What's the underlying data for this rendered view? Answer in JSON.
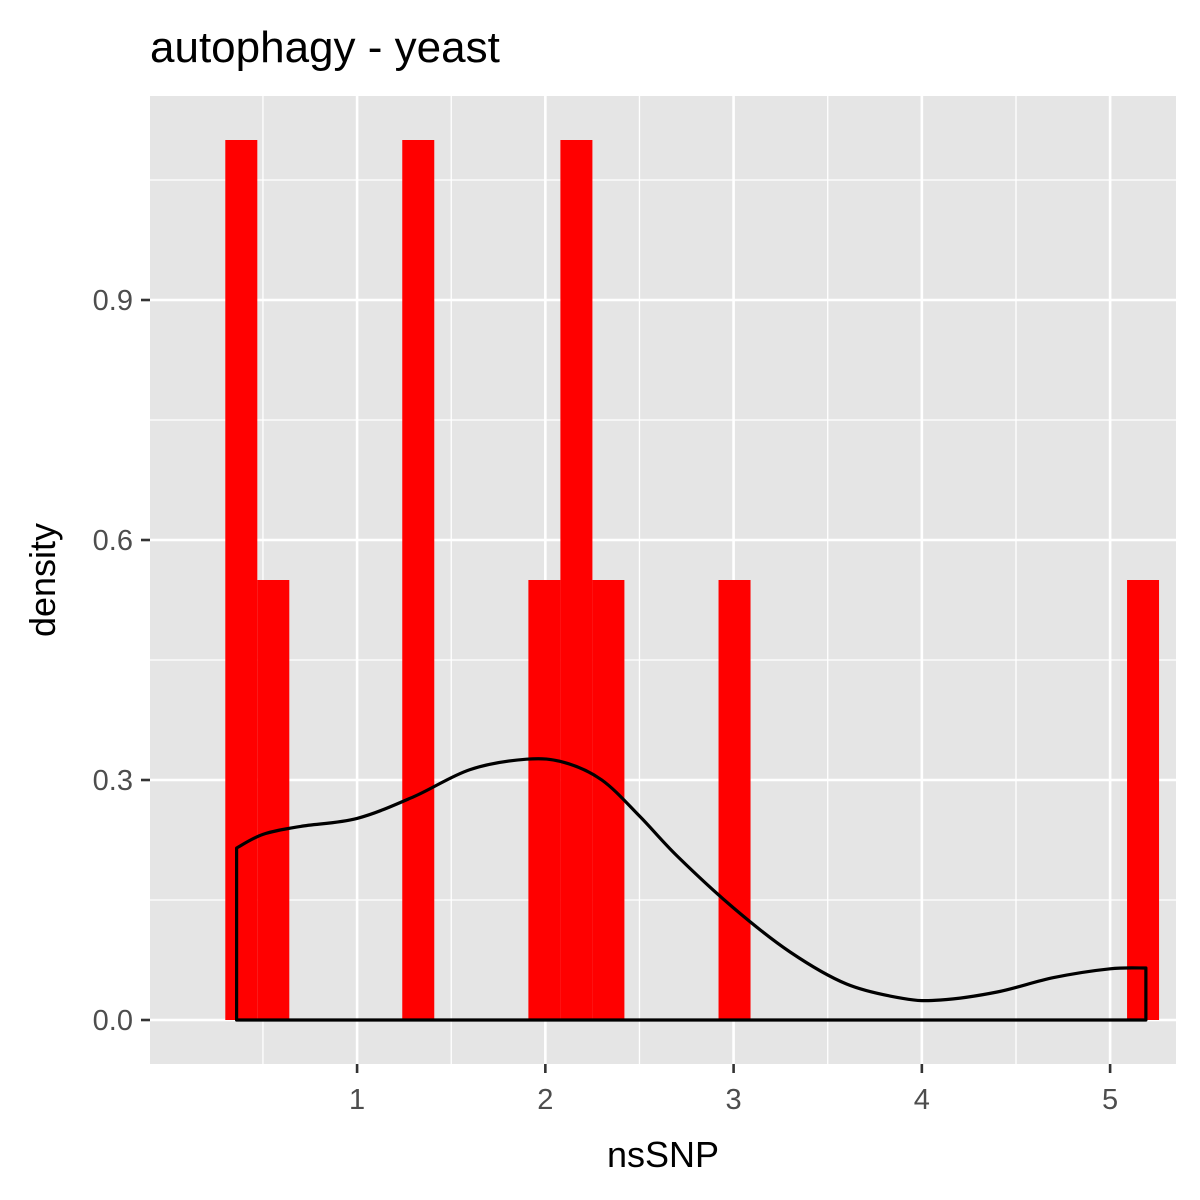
{
  "chart_data": {
    "type": "bar",
    "title": "autophagy - yeast",
    "xlabel": "nsSNP",
    "ylabel": "density",
    "xlim": [
      -0.1,
      5.35
    ],
    "ylim": [
      -0.055,
      1.155
    ],
    "x_ticks": [
      1,
      2,
      3,
      4,
      5
    ],
    "y_ticks": [
      0.0,
      0.3,
      0.6,
      0.9
    ],
    "x_tick_labels": [
      "1",
      "2",
      "3",
      "4",
      "5"
    ],
    "y_tick_labels": [
      "0.0",
      "0.3",
      "0.6",
      "0.9"
    ],
    "grid": true,
    "bar_color": "#ff0000",
    "line_color": "#000000",
    "panel_background": "#e5e5e5",
    "bars": [
      {
        "x0": 0.3,
        "x1": 0.47,
        "density": 1.1
      },
      {
        "x0": 0.47,
        "x1": 0.64,
        "density": 0.55
      },
      {
        "x0": 1.24,
        "x1": 1.41,
        "density": 1.1
      },
      {
        "x0": 1.91,
        "x1": 2.08,
        "density": 0.55
      },
      {
        "x0": 2.08,
        "x1": 2.25,
        "density": 1.1
      },
      {
        "x0": 2.25,
        "x1": 2.42,
        "density": 0.55
      },
      {
        "x0": 2.92,
        "x1": 3.09,
        "density": 0.55
      },
      {
        "x0": 5.09,
        "x1": 5.26,
        "density": 0.55
      }
    ],
    "density_curve": {
      "x": [
        0.36,
        0.5,
        0.7,
        1.0,
        1.3,
        1.6,
        1.9,
        2.1,
        2.3,
        2.5,
        2.7,
        3.0,
        3.3,
        3.6,
        3.9,
        4.1,
        4.4,
        4.7,
        5.0,
        5.19
      ],
      "y": [
        0.215,
        0.232,
        0.242,
        0.252,
        0.279,
        0.313,
        0.326,
        0.322,
        0.3,
        0.255,
        0.205,
        0.14,
        0.085,
        0.045,
        0.027,
        0.025,
        0.035,
        0.053,
        0.064,
        0.065
      ]
    }
  }
}
